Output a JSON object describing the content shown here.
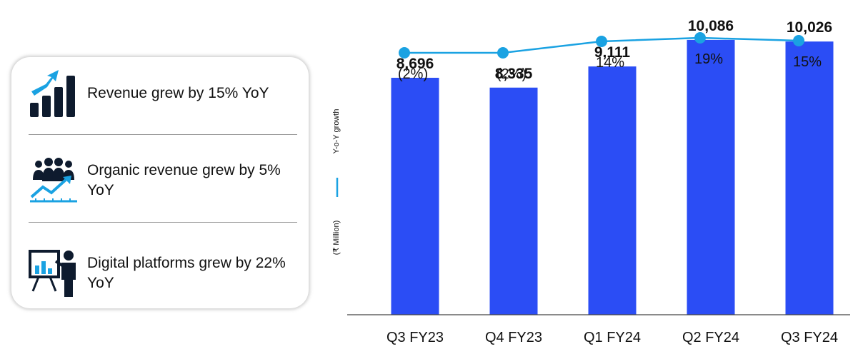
{
  "panel": {
    "items": [
      {
        "icon": "revenue-growth-bars-icon",
        "text": "Revenue grew by 15% YoY"
      },
      {
        "icon": "people-growth-chart-icon",
        "text": "Organic revenue grew by 5% YoY"
      },
      {
        "icon": "presenter-board-icon",
        "text": "Digital platforms grew by 22% YoY"
      }
    ]
  },
  "colors": {
    "bar": "#2B4DF5",
    "line": "#1AA2E2",
    "icon_dark": "#0E1B2E",
    "icon_accent": "#1AA2E2"
  },
  "chart_data": {
    "type": "bar",
    "categories": [
      "Q3 FY23",
      "Q4 FY23",
      "Q1 FY24",
      "Q2 FY24",
      "Q3 FY24"
    ],
    "series": [
      {
        "values": [
          8696,
          8335,
          9111,
          10086,
          10026
        ]
      }
    ],
    "value_labels": [
      "8,696",
      "8,335",
      "9,111",
      "10,086",
      "10,026"
    ],
    "line_series": {
      "name": "Y-o-Y growth",
      "values": [
        -2,
        -2,
        14,
        19,
        15
      ],
      "labels": [
        "(2%)",
        "(2%)",
        "14%",
        "19%",
        "15%"
      ]
    },
    "ylabel": "(₹ Million)",
    "legend": {
      "position": "left-vertical",
      "label": "Y-o-Y growth"
    },
    "ylim": [
      0,
      11000
    ],
    "grid": false
  }
}
